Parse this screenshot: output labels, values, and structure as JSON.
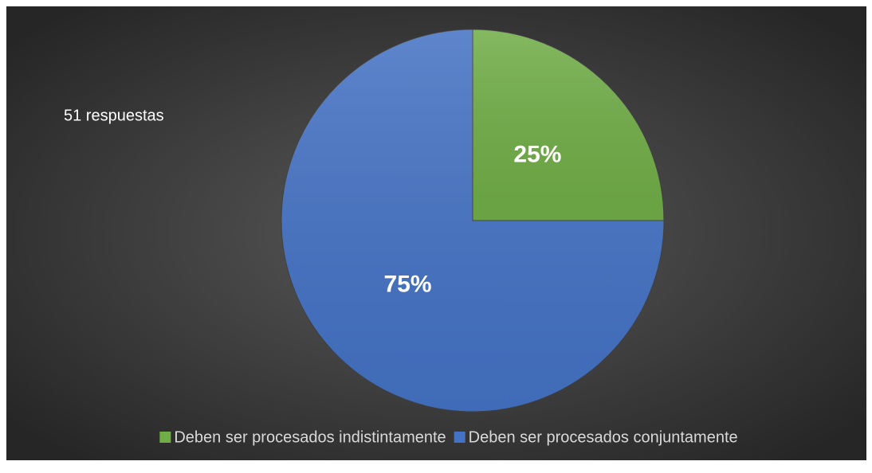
{
  "chart_data": {
    "type": "pie",
    "annotation": "51 respuestas",
    "categories": [
      "Deben ser procesados indistintamente",
      "Deben ser procesados conjuntamente"
    ],
    "values": [
      25,
      75
    ],
    "value_labels": [
      "25%",
      "75%"
    ],
    "colors": [
      "#70ad47",
      "#4472c4"
    ],
    "legend": "bottom"
  }
}
